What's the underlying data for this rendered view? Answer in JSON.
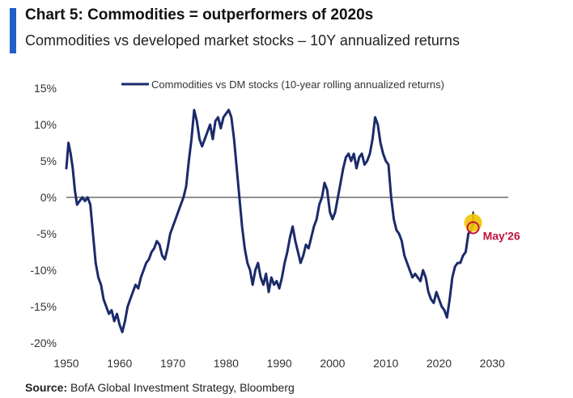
{
  "header": {
    "title": "Chart 5: Commodities = outperformers of 2020s",
    "subtitle": "Commodities vs developed market stocks – 10Y annualized returns",
    "accent_color": "#1f5fc8"
  },
  "source": {
    "label": "Source:",
    "text": " BofA Global Investment Strategy, Bloomberg"
  },
  "chart_data": {
    "type": "line",
    "title": "Chart 5: Commodities = outperformers of 2020s",
    "subtitle": "Commodities vs developed market stocks – 10Y annualized returns",
    "xlabel": "",
    "ylabel": "",
    "xlim": [
      1950,
      2033
    ],
    "ylim": [
      -20,
      15
    ],
    "x_ticks": [
      1950,
      1960,
      1970,
      1980,
      1990,
      2000,
      2010,
      2020,
      2030
    ],
    "y_ticks": [
      15,
      10,
      5,
      0,
      -5,
      -10,
      -15,
      -20
    ],
    "y_tick_labels": [
      "15%",
      "10%",
      "5%",
      "0%",
      "-5%",
      "-10%",
      "-15%",
      "-20%"
    ],
    "grid": false,
    "zero_line": true,
    "legend": "top-center",
    "series_color": "#1b2a6b",
    "series": [
      {
        "name": "Commodities vs DM stocks (10-year rolling annualized returns)",
        "x": [
          1950.0,
          1950.4,
          1950.8,
          1951.2,
          1951.6,
          1952.0,
          1952.5,
          1953.0,
          1953.5,
          1954.0,
          1954.5,
          1955.0,
          1955.5,
          1956.0,
          1956.5,
          1957.0,
          1957.5,
          1958.0,
          1958.5,
          1959.0,
          1959.5,
          1960.0,
          1960.5,
          1961.0,
          1961.5,
          1962.0,
          1962.5,
          1963.0,
          1963.5,
          1964.0,
          1964.5,
          1965.0,
          1965.5,
          1966.0,
          1966.5,
          1967.0,
          1967.5,
          1968.0,
          1968.5,
          1969.0,
          1969.5,
          1970.0,
          1970.5,
          1971.0,
          1971.5,
          1972.0,
          1972.5,
          1973.0,
          1973.5,
          1974.0,
          1974.5,
          1975.0,
          1975.5,
          1976.0,
          1976.5,
          1977.0,
          1977.5,
          1978.0,
          1978.5,
          1979.0,
          1979.5,
          1980.0,
          1980.5,
          1981.0,
          1981.5,
          1982.0,
          1982.5,
          1983.0,
          1983.5,
          1984.0,
          1984.5,
          1985.0,
          1985.5,
          1986.0,
          1986.5,
          1987.0,
          1987.5,
          1988.0,
          1988.5,
          1989.0,
          1989.5,
          1990.0,
          1990.5,
          1991.0,
          1991.5,
          1992.0,
          1992.5,
          1993.0,
          1993.5,
          1994.0,
          1994.5,
          1995.0,
          1995.5,
          1996.0,
          1996.5,
          1997.0,
          1997.5,
          1998.0,
          1998.5,
          1999.0,
          1999.5,
          2000.0,
          2000.5,
          2001.0,
          2001.5,
          2002.0,
          2002.5,
          2003.0,
          2003.5,
          2004.0,
          2004.5,
          2005.0,
          2005.5,
          2006.0,
          2006.5,
          2007.0,
          2007.5,
          2008.0,
          2008.5,
          2009.0,
          2009.5,
          2010.0,
          2010.5,
          2011.0,
          2011.5,
          2012.0,
          2012.5,
          2013.0,
          2013.5,
          2014.0,
          2014.5,
          2015.0,
          2015.5,
          2016.0,
          2016.5,
          2017.0,
          2017.5,
          2018.0,
          2018.5,
          2019.0,
          2019.5,
          2020.0,
          2020.5,
          2021.0,
          2021.5,
          2022.0,
          2022.5,
          2023.0,
          2023.5,
          2024.0,
          2024.5,
          2025.0,
          2025.5,
          2026.0,
          2026.4
        ],
        "values": [
          4,
          7.5,
          6,
          4,
          1,
          -1,
          -0.5,
          0,
          -0.5,
          0,
          -1,
          -5,
          -9,
          -11,
          -12,
          -14,
          -15,
          -16,
          -15.5,
          -17,
          -16,
          -17.5,
          -18.5,
          -17,
          -15,
          -14,
          -13,
          -12,
          -12.5,
          -11,
          -10,
          -9,
          -8.5,
          -7.5,
          -7,
          -6,
          -6.5,
          -8,
          -8.5,
          -7,
          -5,
          -4,
          -3,
          -2,
          -1,
          0,
          1.5,
          5,
          8,
          12,
          10.5,
          8,
          7,
          8,
          9,
          10,
          8,
          10.5,
          11,
          9.5,
          11,
          11.5,
          12,
          11,
          8,
          4,
          0,
          -4,
          -7,
          -9,
          -10,
          -12,
          -10,
          -9,
          -11,
          -12,
          -10.5,
          -13,
          -11,
          -12,
          -11.5,
          -12.5,
          -11,
          -9,
          -7.5,
          -5.5,
          -4,
          -6,
          -7.5,
          -9,
          -8,
          -6.5,
          -7,
          -5.5,
          -4,
          -3,
          -1,
          0,
          2,
          1,
          -2,
          -3,
          -2,
          0,
          2,
          4,
          5.5,
          6,
          5,
          6,
          4,
          5.5,
          6,
          4.5,
          5,
          6,
          8,
          11,
          10,
          7.5,
          6,
          5,
          4.5,
          0,
          -3,
          -4.5,
          -5,
          -6,
          -8,
          -9,
          -10,
          -11,
          -10.5,
          -11,
          -11.5,
          -10,
          -11,
          -13,
          -14,
          -14.5,
          -13,
          -14,
          -15,
          -15.5,
          -16.5,
          -14,
          -11,
          -9.5,
          -9,
          -9,
          -8,
          -7.5,
          -5,
          -4.5,
          -3.5
        ]
      }
    ],
    "annotations": [
      {
        "text": "May'26",
        "x": 2026.4,
        "y": -3.5,
        "color": "#c0143c",
        "marker_color": "#f2c300"
      }
    ]
  }
}
